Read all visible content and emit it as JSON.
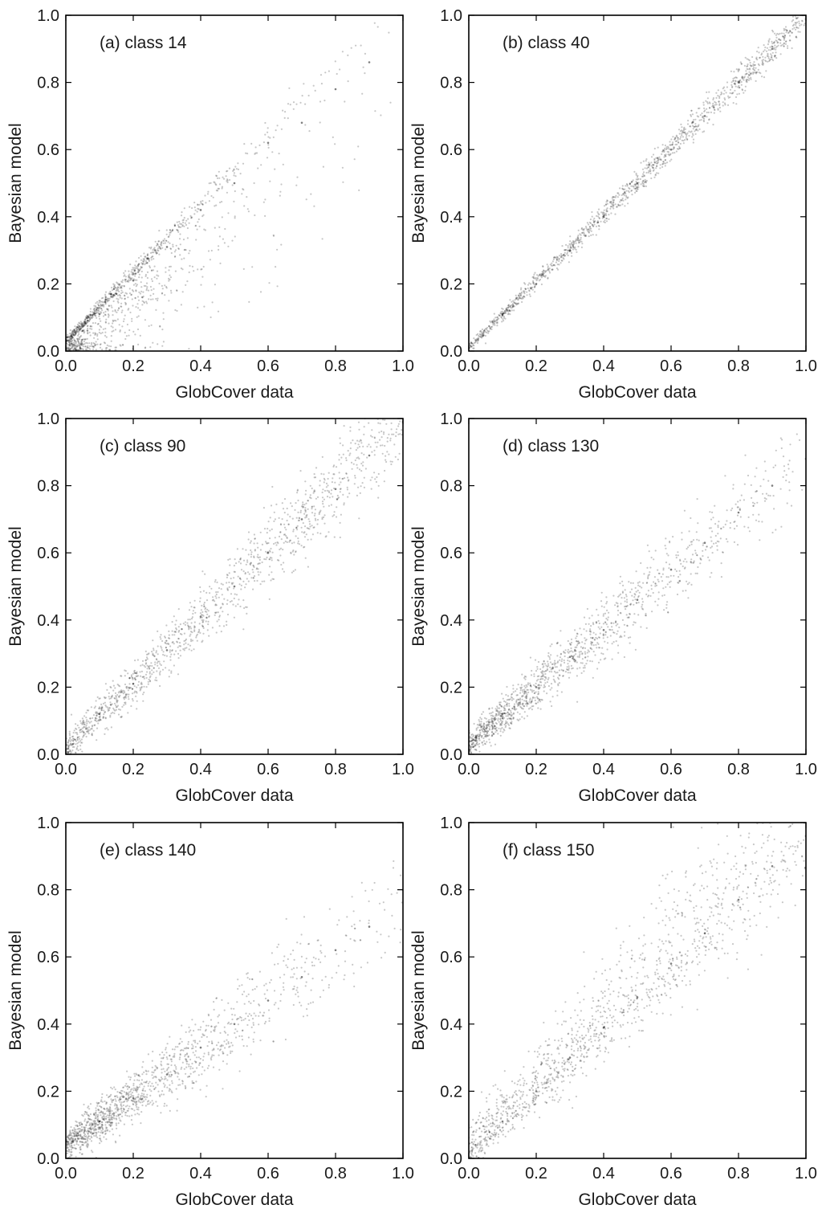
{
  "figure": {
    "layout": "3 rows x 2 columns of scatter panels"
  },
  "chart_data": [
    {
      "type": "scatter",
      "title": "(a) class 14",
      "xlabel": "GlobCover data",
      "ylabel": "Bayesian model",
      "xlim": [
        0.0,
        1.0
      ],
      "ylim": [
        0.0,
        1.0
      ],
      "xticks": [
        "0.0",
        "0.2",
        "0.4",
        "0.6",
        "0.8",
        "1.0"
      ],
      "yticks": [
        "0.0",
        "0.2",
        "0.4",
        "0.6",
        "0.8",
        "1.0"
      ],
      "grid": false,
      "point_color": "#000000",
      "trend": {
        "slope": 1.0,
        "intercept": 0.02,
        "spread": 0.05,
        "density_decay": 4.5,
        "x_max": 0.97,
        "below_bias": 0.6
      },
      "points": [
        [
          0.02,
          0.04
        ],
        [
          0.05,
          0.06
        ],
        [
          0.1,
          0.11
        ],
        [
          0.15,
          0.17
        ],
        [
          0.2,
          0.21
        ],
        [
          0.3,
          0.31
        ],
        [
          0.4,
          0.42
        ],
        [
          0.5,
          0.5
        ],
        [
          0.6,
          0.62
        ],
        [
          0.7,
          0.68
        ],
        [
          0.8,
          0.78
        ],
        [
          0.9,
          0.86
        ]
      ]
    },
    {
      "type": "scatter",
      "title": "(b) class 40",
      "xlabel": "GlobCover data",
      "ylabel": "Bayesian model",
      "xlim": [
        0.0,
        1.0
      ],
      "ylim": [
        0.0,
        1.0
      ],
      "xticks": [
        "0.0",
        "0.2",
        "0.4",
        "0.6",
        "0.8",
        "1.0"
      ],
      "yticks": [
        "0.0",
        "0.2",
        "0.4",
        "0.6",
        "0.8",
        "1.0"
      ],
      "grid": false,
      "point_color": "#000000",
      "trend": {
        "slope": 0.99,
        "intercept": 0.01,
        "spread": 0.012,
        "density_decay": 0.2,
        "x_max": 1.0,
        "below_bias": 0.0
      },
      "points": [
        [
          0.0,
          0.01
        ],
        [
          0.1,
          0.11
        ],
        [
          0.2,
          0.2
        ],
        [
          0.3,
          0.3
        ],
        [
          0.4,
          0.4
        ],
        [
          0.5,
          0.5
        ],
        [
          0.6,
          0.6
        ],
        [
          0.7,
          0.7
        ],
        [
          0.8,
          0.8
        ],
        [
          0.9,
          0.9
        ],
        [
          1.0,
          1.0
        ]
      ]
    },
    {
      "type": "scatter",
      "title": "(c) class 90",
      "xlabel": "GlobCover data",
      "ylabel": "Bayesian model",
      "xlim": [
        0.0,
        1.0
      ],
      "ylim": [
        0.0,
        1.0
      ],
      "xticks": [
        "0.0",
        "0.2",
        "0.4",
        "0.6",
        "0.8",
        "1.0"
      ],
      "yticks": [
        "0.0",
        "0.2",
        "0.4",
        "0.6",
        "0.8",
        "1.0"
      ],
      "grid": false,
      "point_color": "#000000",
      "trend": {
        "slope": 0.97,
        "intercept": 0.02,
        "spread": 0.035,
        "density_decay": 0.8,
        "x_max": 1.0,
        "below_bias": 0.0
      },
      "points": [
        [
          0.02,
          0.03
        ],
        [
          0.1,
          0.12
        ],
        [
          0.2,
          0.21
        ],
        [
          0.3,
          0.31
        ],
        [
          0.4,
          0.41
        ],
        [
          0.5,
          0.5
        ],
        [
          0.6,
          0.6
        ],
        [
          0.7,
          0.7
        ],
        [
          0.8,
          0.79
        ],
        [
          0.9,
          0.89
        ],
        [
          1.0,
          0.99
        ]
      ]
    },
    {
      "type": "scatter",
      "title": "(d) class 130",
      "xlabel": "GlobCover data",
      "ylabel": "Bayesian model",
      "xlim": [
        0.0,
        1.0
      ],
      "ylim": [
        0.0,
        1.0
      ],
      "xticks": [
        "0.0",
        "0.2",
        "0.4",
        "0.6",
        "0.8",
        "1.0"
      ],
      "yticks": [
        "0.0",
        "0.2",
        "0.4",
        "0.6",
        "0.8",
        "1.0"
      ],
      "grid": false,
      "point_color": "#000000",
      "trend": {
        "slope": 0.86,
        "intercept": 0.03,
        "spread": 0.035,
        "density_decay": 2.5,
        "x_max": 1.0,
        "below_bias": 0.0
      },
      "points": [
        [
          0.02,
          0.05
        ],
        [
          0.1,
          0.12
        ],
        [
          0.2,
          0.2
        ],
        [
          0.3,
          0.29
        ],
        [
          0.4,
          0.37
        ],
        [
          0.5,
          0.46
        ],
        [
          0.6,
          0.55
        ],
        [
          0.7,
          0.63
        ],
        [
          0.8,
          0.72
        ],
        [
          0.9,
          0.8
        ],
        [
          1.0,
          0.88
        ]
      ]
    },
    {
      "type": "scatter",
      "title": "(e) class 140",
      "xlabel": "GlobCover data",
      "ylabel": "Bayesian model",
      "xlim": [
        0.0,
        1.0
      ],
      "ylim": [
        0.0,
        1.0
      ],
      "xticks": [
        "0.0",
        "0.2",
        "0.4",
        "0.6",
        "0.8",
        "1.0"
      ],
      "yticks": [
        "0.0",
        "0.2",
        "0.4",
        "0.6",
        "0.8",
        "1.0"
      ],
      "grid": false,
      "point_color": "#000000",
      "trend": {
        "slope": 0.72,
        "intercept": 0.04,
        "spread": 0.04,
        "density_decay": 3.0,
        "x_max": 1.0,
        "below_bias": 0.0
      },
      "points": [
        [
          0.02,
          0.05
        ],
        [
          0.1,
          0.11
        ],
        [
          0.2,
          0.18
        ],
        [
          0.3,
          0.25
        ],
        [
          0.4,
          0.33
        ],
        [
          0.5,
          0.4
        ],
        [
          0.6,
          0.47
        ],
        [
          0.7,
          0.54
        ],
        [
          0.8,
          0.62
        ],
        [
          0.9,
          0.69
        ],
        [
          1.0,
          0.8
        ]
      ]
    },
    {
      "type": "scatter",
      "title": "(f) class 150",
      "xlabel": "GlobCover data",
      "ylabel": "Bayesian model",
      "xlim": [
        0.0,
        1.0
      ],
      "ylim": [
        0.0,
        1.0
      ],
      "xticks": [
        "0.0",
        "0.2",
        "0.4",
        "0.6",
        "0.8",
        "1.0"
      ],
      "yticks": [
        "0.0",
        "0.2",
        "0.4",
        "0.6",
        "0.8",
        "1.0"
      ],
      "grid": false,
      "point_color": "#000000",
      "trend": {
        "slope": 0.95,
        "intercept": 0.02,
        "spread": 0.04,
        "density_decay": 1.0,
        "x_max": 1.0,
        "below_bias": -0.4
      },
      "points": [
        [
          0.02,
          0.04
        ],
        [
          0.1,
          0.11
        ],
        [
          0.2,
          0.2
        ],
        [
          0.3,
          0.3
        ],
        [
          0.4,
          0.39
        ],
        [
          0.5,
          0.48
        ],
        [
          0.6,
          0.58
        ],
        [
          0.7,
          0.67
        ],
        [
          0.8,
          0.77
        ],
        [
          0.9,
          0.87
        ],
        [
          1.0,
          0.96
        ]
      ]
    }
  ]
}
